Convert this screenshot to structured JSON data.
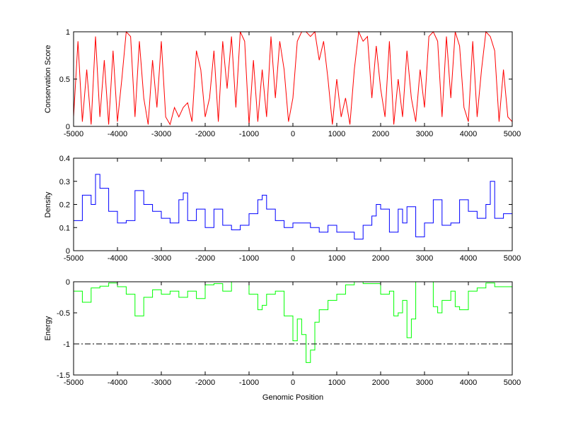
{
  "chart_data": [
    {
      "type": "line",
      "title": "",
      "xlabel": "",
      "ylabel": "Conservation Score",
      "xlim": [
        -5000,
        5000
      ],
      "ylim": [
        0,
        1
      ],
      "xticks": [
        "-5000",
        "-4000",
        "-3000",
        "-2000",
        "-1000",
        "0",
        "1000",
        "2000",
        "3000",
        "4000",
        "5000"
      ],
      "yticks": [
        "0",
        "0.5",
        "1"
      ],
      "ytick_values": [
        0,
        0.5,
        1
      ],
      "color": "#ff0000",
      "x_start": -5000,
      "x_step": 100,
      "values": [
        0.1,
        0.9,
        0.05,
        0.6,
        0.02,
        0.95,
        0.1,
        0.7,
        0.02,
        0.8,
        0.05,
        0.5,
        1,
        0.95,
        0.1,
        0.9,
        0.3,
        0.02,
        0.7,
        0.2,
        0.9,
        0.1,
        0.02,
        0.2,
        0.1,
        0.2,
        0.25,
        0.05,
        0.8,
        0.6,
        0.1,
        0.3,
        0.8,
        0.05,
        0.9,
        0.4,
        0.95,
        0.2,
        1,
        0.9,
        0.02,
        0.7,
        0.05,
        0.6,
        0.1,
        0.95,
        0.3,
        0.9,
        0.6,
        0.05,
        0.3,
        0.9,
        1,
        1,
        0.95,
        1,
        0.7,
        0.9,
        0.5,
        0.02,
        0.5,
        0.1,
        0.3,
        0.02,
        0.6,
        1,
        0.9,
        0.95,
        0.3,
        0.85,
        0.4,
        0.1,
        0.9,
        0.02,
        0.5,
        0.1,
        0.8,
        0.3,
        0.05,
        0.6,
        0.2,
        0.95,
        1,
        0.9,
        0.1,
        0.95,
        0.3,
        1,
        0.85,
        0.2,
        0.05,
        0.9,
        0.1,
        0.6,
        1,
        0.95,
        0.8,
        0.05,
        0.6,
        0.1,
        0.05
      ]
    },
    {
      "type": "line",
      "title": "",
      "xlabel": "",
      "ylabel": "Density",
      "xlim": [
        -5000,
        5000
      ],
      "ylim": [
        0,
        0.4
      ],
      "xticks": [
        "-5000",
        "-4000",
        "-3000",
        "-2000",
        "-1000",
        "0",
        "1000",
        "2000",
        "3000",
        "4000",
        "5000"
      ],
      "yticks": [
        "0",
        "0.1",
        "0.2",
        "0.3",
        "0.4"
      ],
      "ytick_values": [
        0,
        0.1,
        0.2,
        0.3,
        0.4
      ],
      "color": "#0000ff",
      "x": [
        -5000,
        -4800,
        -4600,
        -4500,
        -4400,
        -4200,
        -4000,
        -3800,
        -3600,
        -3400,
        -3200,
        -3000,
        -2800,
        -2600,
        -2500,
        -2400,
        -2200,
        -2000,
        -1800,
        -1600,
        -1400,
        -1200,
        -1000,
        -800,
        -700,
        -600,
        -400,
        -200,
        0,
        200,
        400,
        600,
        800,
        1000,
        1200,
        1400,
        1600,
        1800,
        1900,
        2000,
        2200,
        2400,
        2500,
        2600,
        2800,
        3000,
        3200,
        3400,
        3600,
        3800,
        4000,
        4200,
        4400,
        4500,
        4600,
        4800,
        5000
      ],
      "values": [
        0.13,
        0.24,
        0.2,
        0.33,
        0.27,
        0.17,
        0.12,
        0.13,
        0.26,
        0.2,
        0.17,
        0.14,
        0.12,
        0.22,
        0.25,
        0.13,
        0.18,
        0.1,
        0.18,
        0.11,
        0.09,
        0.11,
        0.16,
        0.22,
        0.24,
        0.18,
        0.13,
        0.1,
        0.12,
        0.12,
        0.1,
        0.08,
        0.11,
        0.08,
        0.08,
        0.05,
        0.11,
        0.15,
        0.2,
        0.18,
        0.08,
        0.18,
        0.12,
        0.19,
        0.06,
        0.12,
        0.22,
        0.11,
        0.12,
        0.22,
        0.17,
        0.14,
        0.2,
        0.3,
        0.14,
        0.16,
        0.15
      ]
    },
    {
      "type": "line",
      "title": "",
      "xlabel": "Genomic Position",
      "ylabel": "Energy",
      "xlim": [
        -5000,
        5000
      ],
      "ylim": [
        -1.5,
        0
      ],
      "xticks": [
        "-5000",
        "-4000",
        "-3000",
        "-2000",
        "-1000",
        "0",
        "1000",
        "2000",
        "3000",
        "4000",
        "5000"
      ],
      "yticks": [
        "-1.5",
        "-1",
        "-0.5",
        "0"
      ],
      "ytick_values": [
        -1.5,
        -1,
        -0.5,
        0
      ],
      "color": "#00ff00",
      "threshold": -1,
      "x": [
        -5000,
        -4800,
        -4600,
        -4400,
        -4200,
        -4000,
        -3800,
        -3600,
        -3400,
        -3200,
        -3000,
        -2800,
        -2600,
        -2400,
        -2200,
        -2000,
        -1800,
        -1600,
        -1400,
        -1200,
        -1000,
        -800,
        -700,
        -600,
        -400,
        -200,
        0,
        100,
        200,
        300,
        400,
        500,
        600,
        800,
        1000,
        1200,
        1400,
        1600,
        1800,
        2000,
        2200,
        2300,
        2400,
        2500,
        2600,
        2700,
        2800,
        3000,
        3200,
        3300,
        3400,
        3600,
        3700,
        3800,
        4000,
        4200,
        4400,
        4600,
        4800,
        5000
      ],
      "values": [
        -0.15,
        -0.33,
        -0.1,
        -0.07,
        -0.02,
        -0.08,
        -0.2,
        -0.55,
        -0.25,
        -0.13,
        -0.2,
        -0.15,
        -0.25,
        -0.15,
        -0.27,
        -0.05,
        -0.03,
        -0.15,
        0,
        0,
        -0.2,
        -0.45,
        -0.38,
        -0.2,
        -0.15,
        -0.55,
        -0.95,
        -0.6,
        -0.85,
        -1.3,
        -1.1,
        -0.65,
        -0.45,
        -0.3,
        -0.2,
        -0.05,
        0,
        -0.03,
        -0.03,
        -0.2,
        -0.15,
        -0.55,
        -0.5,
        -0.3,
        -0.9,
        -0.6,
        0,
        0,
        -0.4,
        -0.5,
        -0.3,
        -0.15,
        -0.4,
        -0.45,
        -0.15,
        -0.1,
        -0.02,
        -0.08,
        -0.08,
        -0.2
      ]
    }
  ]
}
